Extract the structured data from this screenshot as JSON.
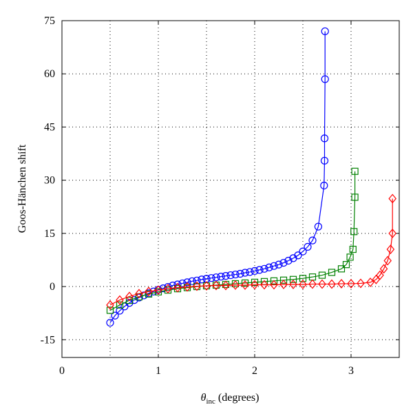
{
  "chart_data": {
    "type": "line",
    "xlabel": {
      "symbol": "θ",
      "subscript": "inc",
      "text": "(degrees)"
    },
    "ylabel": "Goos-Hänchen shift",
    "xlim": [
      0,
      3.5
    ],
    "xticks": [
      0,
      1,
      2,
      3
    ],
    "xminor_grid": [
      0.5,
      1.5,
      2.5
    ],
    "ylim": [
      -20,
      75
    ],
    "yticks": [
      -15,
      0,
      15,
      30,
      45,
      60,
      75
    ],
    "grid": true,
    "series": [
      {
        "color": "#0000ff",
        "marker": "circle",
        "x": [
          0.5,
          0.55,
          0.6,
          0.65,
          0.7,
          0.75,
          0.8,
          0.85,
          0.9,
          0.95,
          1.0,
          1.05,
          1.1,
          1.15,
          1.2,
          1.25,
          1.3,
          1.35,
          1.4,
          1.45,
          1.5,
          1.55,
          1.6,
          1.65,
          1.7,
          1.75,
          1.8,
          1.85,
          1.9,
          1.95,
          2.0,
          2.05,
          2.1,
          2.15,
          2.2,
          2.25,
          2.3,
          2.35,
          2.4,
          2.45,
          2.5,
          2.55,
          2.6,
          2.66,
          2.72,
          2.725,
          2.725,
          2.73,
          2.73
        ],
        "values": [
          -10.2,
          -8.2,
          -6.8,
          -5.6,
          -4.6,
          -3.8,
          -3.1,
          -2.5,
          -1.9,
          -1.4,
          -0.9,
          -0.5,
          -0.1,
          0.3,
          0.6,
          0.9,
          1.2,
          1.5,
          1.7,
          2.0,
          2.2,
          2.4,
          2.6,
          2.8,
          3.0,
          3.2,
          3.4,
          3.6,
          3.9,
          4.1,
          4.4,
          4.7,
          5.0,
          5.4,
          5.8,
          6.2,
          6.7,
          7.3,
          8.0,
          8.8,
          9.9,
          11.2,
          13.0,
          16.9,
          28.5,
          35.5,
          41.8,
          58.5,
          72
        ]
      },
      {
        "color": "#008000",
        "marker": "square",
        "x": [
          0.5,
          0.6,
          0.7,
          0.8,
          0.9,
          1.0,
          1.1,
          1.2,
          1.3,
          1.4,
          1.5,
          1.6,
          1.7,
          1.8,
          1.9,
          2.0,
          2.1,
          2.2,
          2.3,
          2.4,
          2.5,
          2.6,
          2.7,
          2.8,
          2.9,
          2.95,
          2.99,
          3.02,
          3.03,
          3.04,
          3.04
        ],
        "values": [
          -6.7,
          -5.2,
          -3.9,
          -2.9,
          -2.1,
          -1.5,
          -1.0,
          -0.6,
          -0.3,
          0,
          0.2,
          0.4,
          0.6,
          0.8,
          1.0,
          1.2,
          1.4,
          1.6,
          1.8,
          2.0,
          2.3,
          2.7,
          3.2,
          4.0,
          5.0,
          6.2,
          8.3,
          10.5,
          15.5,
          25.2,
          32.5
        ]
      },
      {
        "color": "#ff0000",
        "marker": "diamond",
        "x": [
          0.5,
          0.6,
          0.7,
          0.8,
          0.9,
          1.0,
          1.1,
          1.2,
          1.3,
          1.4,
          1.5,
          1.6,
          1.7,
          1.8,
          1.9,
          2.0,
          2.1,
          2.2,
          2.3,
          2.4,
          2.5,
          2.6,
          2.7,
          2.8,
          2.9,
          3.0,
          3.1,
          3.2,
          3.26,
          3.3,
          3.34,
          3.38,
          3.41,
          3.43,
          3.43
        ],
        "values": [
          -5.2,
          -3.8,
          -2.8,
          -2.0,
          -1.4,
          -1.0,
          -0.6,
          -0.3,
          -0.1,
          0.1,
          0.2,
          0.3,
          0.3,
          0.4,
          0.4,
          0.5,
          0.5,
          0.5,
          0.6,
          0.6,
          0.6,
          0.7,
          0.7,
          0.7,
          0.8,
          0.8,
          0.9,
          1.2,
          2.0,
          3.2,
          5.0,
          7.3,
          10.5,
          15,
          24.8
        ]
      }
    ]
  }
}
